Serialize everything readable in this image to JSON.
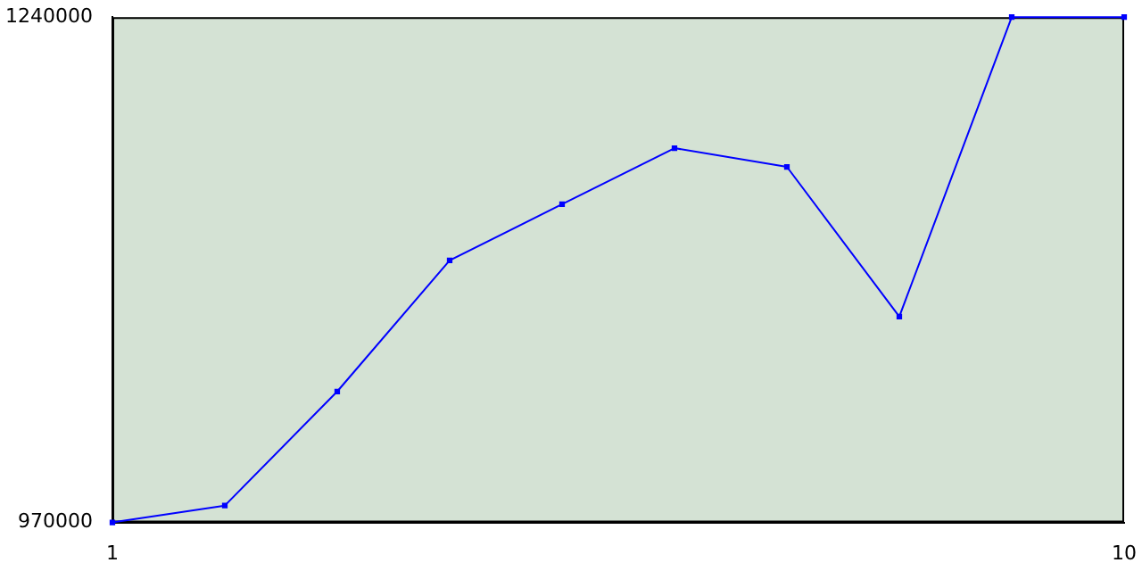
{
  "chart_data": {
    "type": "line",
    "x": [
      1,
      2,
      3,
      4,
      5,
      6,
      7,
      8,
      9,
      10
    ],
    "series": [
      {
        "color": "#0000ff",
        "values": [
          970000,
          979000,
          1040000,
          1110000,
          1140000,
          1170000,
          1160000,
          1080000,
          1240000,
          1240000
        ]
      }
    ],
    "xlim": [
      1,
      10
    ],
    "xticks": [
      1,
      10
    ],
    "ylim": [
      970000,
      1240000
    ],
    "yticks": [
      970000,
      1240000
    ],
    "grid": false,
    "legend": false,
    "marker": "square",
    "line_style": "solid"
  }
}
